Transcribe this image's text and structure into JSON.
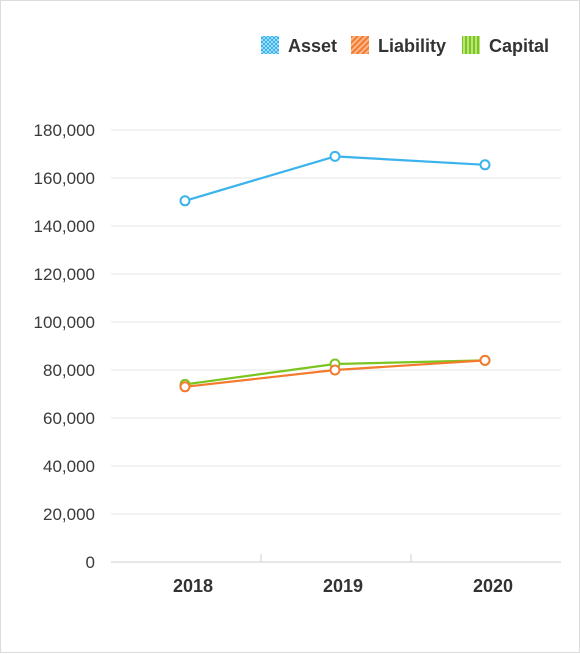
{
  "chart_data": {
    "type": "line",
    "categories": [
      "2018",
      "2019",
      "2020"
    ],
    "series": [
      {
        "name": "Asset",
        "values": [
          150500,
          169000,
          165500
        ],
        "color": "#3bb3ec",
        "pattern": "checker"
      },
      {
        "name": "Liability",
        "values": [
          73000,
          80000,
          84000
        ],
        "color": "#f47a2e",
        "pattern": "diagonal"
      },
      {
        "name": "Capital",
        "values": [
          74000,
          82500,
          84000
        ],
        "color": "#7cc520",
        "pattern": "vertical"
      }
    ],
    "ylim": [
      0,
      180000
    ],
    "yticks": [
      0,
      20000,
      40000,
      60000,
      80000,
      100000,
      120000,
      140000,
      160000,
      180000
    ],
    "ytick_labels": [
      "0",
      "20,000",
      "40,000",
      "60,000",
      "80,000",
      "100,000",
      "120,000",
      "140,000",
      "160,000",
      "180,000"
    ],
    "grid": true,
    "legend_position": "top-right",
    "title": "",
    "xlabel": "",
    "ylabel": ""
  }
}
